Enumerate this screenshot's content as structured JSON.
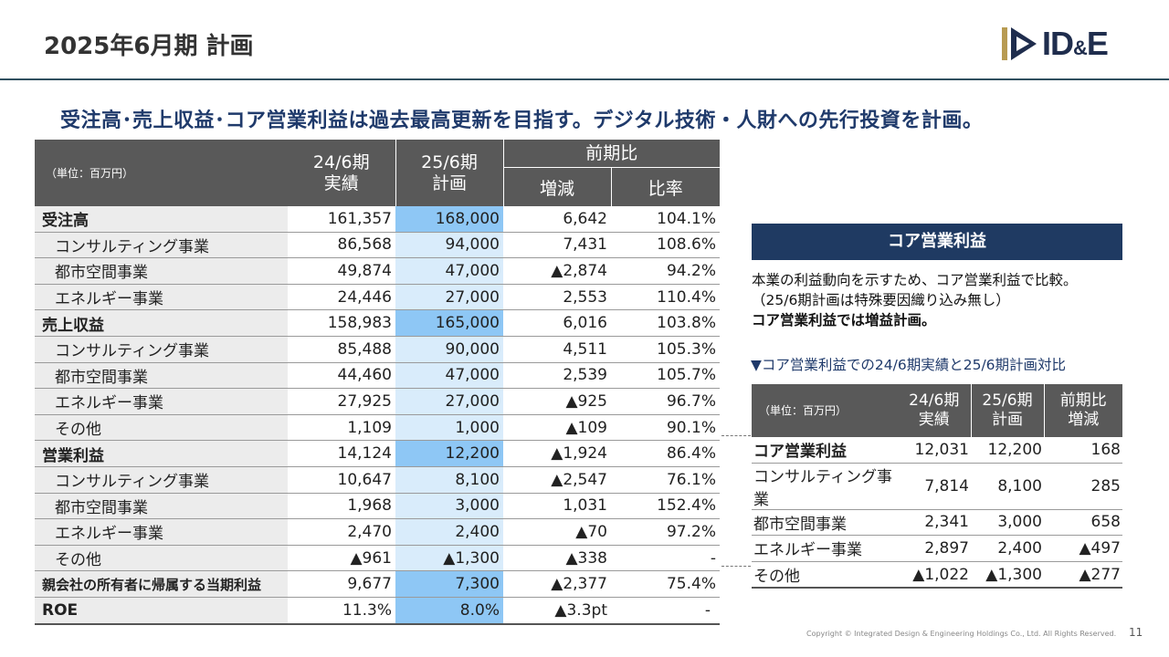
{
  "page": {
    "title": "2025年6月期 計画",
    "headline": "受注高･売上収益･コア営業利益は過去最高更新を目指す。デジタル技術・人財への先行投資を計画。",
    "footer": "Copyright © Integrated Design & Engineering Holdings Co., Ltd. All Rights Reserved.",
    "page_number": "11"
  },
  "logo": {
    "text_main": "ID",
    "text_small": "&",
    "text_end": "E"
  },
  "main_table": {
    "unit": "（単位：百万円）",
    "col_prev_1": "24/6期",
    "col_prev_2": "実績",
    "col_plan_1": "25/6期",
    "col_plan_2": "計画",
    "col_yoy": "前期比",
    "col_diff": "増減",
    "col_ratio": "比率",
    "rows": [
      {
        "label": "受注高",
        "prev": "161,357",
        "plan": "168,000",
        "diff": "6,642",
        "ratio": "104.1%"
      },
      {
        "label": "コンサルティング事業",
        "prev": "86,568",
        "plan": "94,000",
        "diff": "7,431",
        "ratio": "108.6%"
      },
      {
        "label": "都市空間事業",
        "prev": "49,874",
        "plan": "47,000",
        "diff": "▲2,874",
        "ratio": "94.2%"
      },
      {
        "label": "エネルギー事業",
        "prev": "24,446",
        "plan": "27,000",
        "diff": "2,553",
        "ratio": "110.4%"
      },
      {
        "label": "売上収益",
        "prev": "158,983",
        "plan": "165,000",
        "diff": "6,016",
        "ratio": "103.8%"
      },
      {
        "label": "コンサルティング事業",
        "prev": "85,488",
        "plan": "90,000",
        "diff": "4,511",
        "ratio": "105.3%"
      },
      {
        "label": "都市空間事業",
        "prev": "44,460",
        "plan": "47,000",
        "diff": "2,539",
        "ratio": "105.7%"
      },
      {
        "label": "エネルギー事業",
        "prev": "27,925",
        "plan": "27,000",
        "diff": "▲925",
        "ratio": "96.7%"
      },
      {
        "label": "その他",
        "prev": "1,109",
        "plan": "1,000",
        "diff": "▲109",
        "ratio": "90.1%"
      },
      {
        "label": "営業利益",
        "prev": "14,124",
        "plan": "12,200",
        "diff": "▲1,924",
        "ratio": "86.4%"
      },
      {
        "label": "コンサルティング事業",
        "prev": "10,647",
        "plan": "8,100",
        "diff": "▲2,547",
        "ratio": "76.1%"
      },
      {
        "label": "都市空間事業",
        "prev": "1,968",
        "plan": "3,000",
        "diff": "1,031",
        "ratio": "152.4%"
      },
      {
        "label": "エネルギー事業",
        "prev": "2,470",
        "plan": "2,400",
        "diff": "▲70",
        "ratio": "97.2%"
      },
      {
        "label": "その他",
        "prev": "▲961",
        "plan": "▲1,300",
        "diff": "▲338",
        "ratio": "-"
      },
      {
        "label": "親会社の所有者に帰属する当期利益",
        "prev": "9,677",
        "plan": "7,300",
        "diff": "▲2,377",
        "ratio": "75.4%"
      },
      {
        "label": "ROE",
        "prev": "11.3%",
        "plan": "8.0%",
        "diff": "▲3.3pt",
        "ratio": "-"
      }
    ]
  },
  "core_box": {
    "title": "コア営業利益",
    "desc_line1": "本業の利益動向を示すため、コア営業利益で比較。",
    "desc_line2": "（25/6期計画は特殊要因織り込み無し）",
    "desc_line3": "コア営業利益では増益計画。",
    "caption": "▼コア営業利益での24/6期実績と25/6期計画対比"
  },
  "core_table": {
    "unit": "（単位：百万円）",
    "col_prev_1": "24/6期",
    "col_prev_2": "実績",
    "col_plan_1": "25/6期",
    "col_plan_2": "計画",
    "col_diff_1": "前期比",
    "col_diff_2": "増減",
    "rows": [
      {
        "label": "コア営業利益",
        "prev": "12,031",
        "plan": "12,200",
        "diff": "168"
      },
      {
        "label": "コンサルティング事業",
        "prev": "7,814",
        "plan": "8,100",
        "diff": "285"
      },
      {
        "label": "都市空間事業",
        "prev": "2,341",
        "plan": "3,000",
        "diff": "658"
      },
      {
        "label": "エネルギー事業",
        "prev": "2,897",
        "plan": "2,400",
        "diff": "▲497"
      },
      {
        "label": "その他",
        "prev": "▲1,022",
        "plan": "▲1,300",
        "diff": "▲277"
      }
    ]
  }
}
